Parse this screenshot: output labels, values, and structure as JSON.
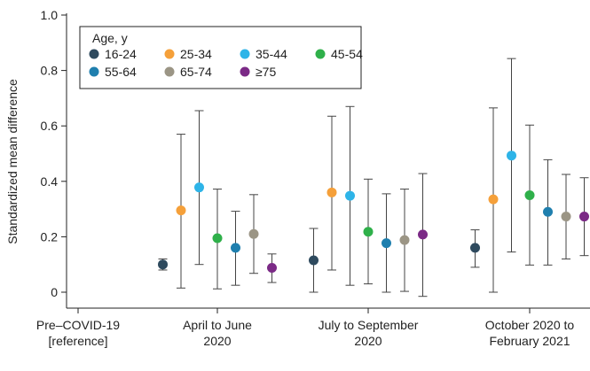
{
  "chart_data": {
    "type": "scatter",
    "title": "",
    "ylabel": "Standardized mean difference",
    "xlabel": "",
    "ylim": [
      -0.05,
      1.0
    ],
    "yticks": [
      {
        "value": 0,
        "label": "0"
      },
      {
        "value": 0.2,
        "label": "0.2"
      },
      {
        "value": 0.4,
        "label": "0.4"
      },
      {
        "value": 0.6,
        "label": "0.6"
      },
      {
        "value": 0.8,
        "label": "0.8"
      },
      {
        "value": 1.0,
        "label": "1.0"
      }
    ],
    "categories": [
      {
        "line1": "Pre–COVID-19",
        "line2": "[reference]"
      },
      {
        "line1": "April to June",
        "line2": "2020"
      },
      {
        "line1": "July to September",
        "line2": "2020"
      },
      {
        "line1": "October 2020 to",
        "line2": "February 2021"
      }
    ],
    "legend": {
      "title": "Age, y",
      "placement": "top-left"
    },
    "grid": false,
    "series": [
      {
        "name": "16-24",
        "color": "#2e4a5e",
        "points": [
          null,
          {
            "y": 0.1,
            "lo": 0.08,
            "hi": 0.12
          },
          {
            "y": 0.115,
            "lo": 0.0,
            "hi": 0.23
          },
          {
            "y": 0.16,
            "lo": 0.09,
            "hi": 0.225
          }
        ]
      },
      {
        "name": "25-34",
        "color": "#f5a03a",
        "points": [
          null,
          {
            "y": 0.295,
            "lo": 0.015,
            "hi": 0.57
          },
          {
            "y": 0.36,
            "lo": 0.08,
            "hi": 0.635
          },
          {
            "y": 0.335,
            "lo": 0.0,
            "hi": 0.665
          }
        ]
      },
      {
        "name": "35-44",
        "color": "#2eb4e8",
        "points": [
          null,
          {
            "y": 0.378,
            "lo": 0.1,
            "hi": 0.655
          },
          {
            "y": 0.348,
            "lo": 0.025,
            "hi": 0.67
          },
          {
            "y": 0.493,
            "lo": 0.145,
            "hi": 0.843
          }
        ]
      },
      {
        "name": "45-54",
        "color": "#2fb04a",
        "points": [
          null,
          {
            "y": 0.195,
            "lo": 0.012,
            "hi": 0.372
          },
          {
            "y": 0.218,
            "lo": 0.03,
            "hi": 0.408
          },
          {
            "y": 0.35,
            "lo": 0.098,
            "hi": 0.603
          }
        ]
      },
      {
        "name": "55-64",
        "color": "#1f7fae",
        "points": [
          null,
          {
            "y": 0.16,
            "lo": 0.025,
            "hi": 0.292
          },
          {
            "y": 0.177,
            "lo": 0.0,
            "hi": 0.355
          },
          {
            "y": 0.29,
            "lo": 0.098,
            "hi": 0.478
          }
        ]
      },
      {
        "name": "65-74",
        "color": "#9b9585",
        "points": [
          null,
          {
            "y": 0.21,
            "lo": 0.068,
            "hi": 0.352
          },
          {
            "y": 0.188,
            "lo": 0.003,
            "hi": 0.372
          },
          {
            "y": 0.273,
            "lo": 0.12,
            "hi": 0.425
          }
        ]
      },
      {
        "name": "≥75",
        "color": "#7b2a86",
        "points": [
          null,
          {
            "y": 0.088,
            "lo": 0.035,
            "hi": 0.138
          },
          {
            "y": 0.208,
            "lo": -0.015,
            "hi": 0.428
          },
          {
            "y": 0.273,
            "lo": 0.132,
            "hi": 0.413
          }
        ]
      }
    ]
  }
}
